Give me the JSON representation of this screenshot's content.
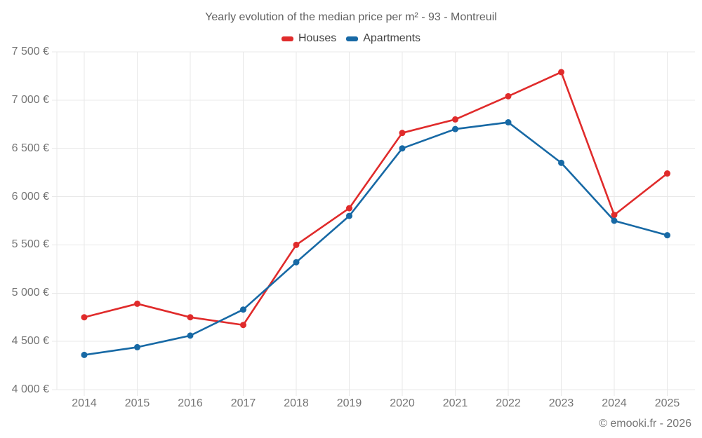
{
  "chart": {
    "title": "Yearly evolution of the median price per m² - 93 - Montreuil"
  },
  "footer": {
    "credit": "© emooki.fr - 2026"
  },
  "colors": {
    "grid": "#e8e8e8",
    "axis_text": "#757575",
    "houses": "#e02b2b",
    "apartments": "#1769a5"
  },
  "chart_data": {
    "type": "line",
    "x": [
      "2014",
      "2015",
      "2016",
      "2017",
      "2018",
      "2019",
      "2020",
      "2021",
      "2022",
      "2023",
      "2024",
      "2025"
    ],
    "series": [
      {
        "name": "Houses",
        "color": "#e02b2b",
        "values": [
          4750,
          4890,
          4750,
          4670,
          5500,
          5880,
          6660,
          6800,
          7040,
          7290,
          5810,
          6240
        ]
      },
      {
        "name": "Apartments",
        "color": "#1769a5",
        "values": [
          4360,
          4440,
          4560,
          4830,
          5320,
          5800,
          6500,
          6700,
          6770,
          6350,
          5750,
          5600
        ]
      }
    ],
    "title": "Yearly evolution of the median price per m² - 93 - Montreuil",
    "xlabel": "",
    "ylabel": "",
    "ylim": [
      4000,
      7500
    ],
    "yticks": [
      4000,
      4500,
      5000,
      5500,
      6000,
      6500,
      7000,
      7500
    ],
    "ytick_labels": [
      "4 000 €",
      "4 500 €",
      "5 000 €",
      "5 500 €",
      "6 000 €",
      "6 500 €",
      "7 000 €",
      "7 500 €"
    ],
    "grid": true,
    "legend_position": "top",
    "marker": "circle"
  }
}
